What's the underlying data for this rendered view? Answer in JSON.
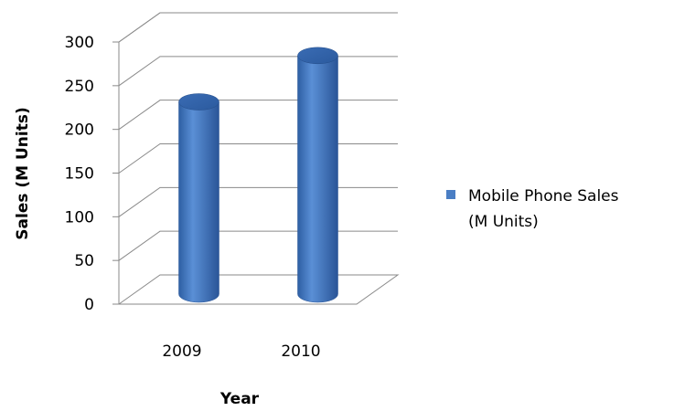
{
  "chart_data": {
    "type": "bar",
    "style": "3d-cylinder",
    "categories": [
      "2009",
      "2010"
    ],
    "series": [
      {
        "name": "Mobile Phone Sales (M Units)",
        "values": [
          220,
          273
        ],
        "color": "#4a7ec4"
      }
    ],
    "xlabel": "Year",
    "ylabel": "Sales (M Units)",
    "ylim": [
      0,
      300
    ],
    "yticks": [
      0,
      50,
      100,
      150,
      200,
      250,
      300
    ],
    "grid": true,
    "legend_position": "right",
    "legend_lines": [
      "Mobile Phone Sales",
      "(M Units)"
    ]
  }
}
